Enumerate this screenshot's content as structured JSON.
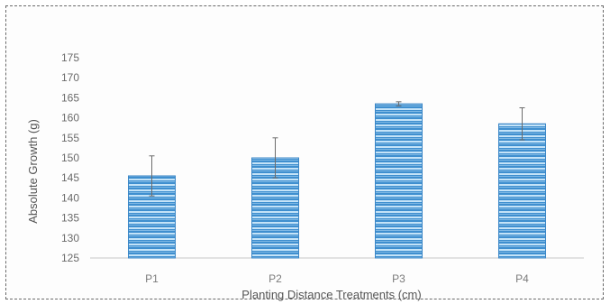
{
  "chart_data": {
    "type": "bar",
    "title": "",
    "xlabel": "Planting Distance Treatments (cm)",
    "ylabel": "Absolute Growth (g)",
    "categories": [
      "P1",
      "P2",
      "P3",
      "P4"
    ],
    "values": [
      145.5,
      150,
      163.5,
      158.5
    ],
    "error": [
      5,
      5,
      0.5,
      4
    ],
    "ylim": [
      125,
      175
    ],
    "yticks": [
      "125",
      "130",
      "135",
      "140",
      "145",
      "150",
      "155",
      "160",
      "165",
      "170",
      "175"
    ],
    "grid": false,
    "legend": "none",
    "bar_color": "#3f8fcf",
    "bar_stripe_color": "#bfe0f6"
  }
}
